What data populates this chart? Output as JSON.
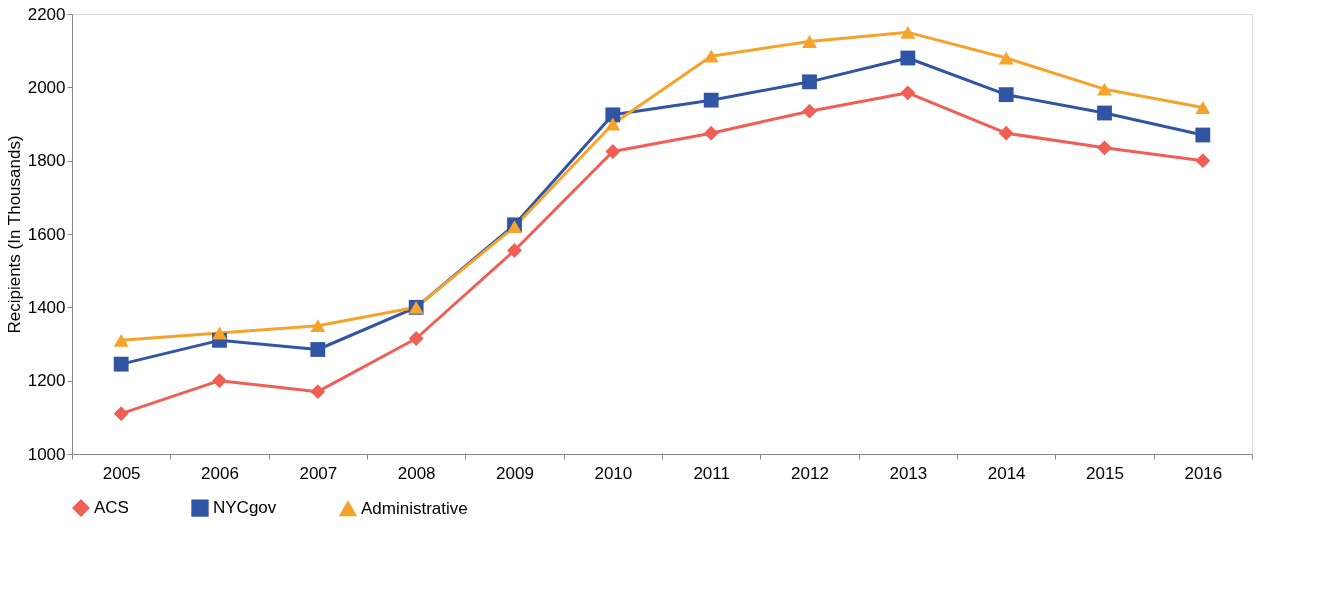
{
  "chart_data": {
    "type": "line",
    "ylabel": "Recipients (In Thousands)",
    "categories": [
      "2005",
      "2006",
      "2007",
      "2008",
      "2009",
      "2010",
      "2011",
      "2012",
      "2013",
      "2014",
      "2015",
      "2016"
    ],
    "ylim": [
      1000,
      2200
    ],
    "yticks": [
      1000,
      1200,
      1400,
      1600,
      1800,
      2000,
      2200
    ],
    "grid": false,
    "legend": "bottom",
    "series": [
      {
        "name": "ACS",
        "color": "#ef5f55",
        "marker": "diamond",
        "values": [
          1110,
          1200,
          1170,
          1315,
          1555,
          1825,
          1875,
          1935,
          1985,
          1875,
          1835,
          1800
        ]
      },
      {
        "name": "NYCgov",
        "color": "#2f55a4",
        "marker": "square",
        "values": [
          1245,
          1310,
          1285,
          1400,
          1625,
          1925,
          1965,
          2015,
          2080,
          1980,
          1930,
          1870
        ]
      },
      {
        "name": "Administrative",
        "color": "#f6a32c",
        "marker": "triangle",
        "values": [
          1310,
          1330,
          1350,
          1400,
          1620,
          1900,
          2085,
          2125,
          2150,
          2080,
          1995,
          1945
        ]
      }
    ]
  }
}
